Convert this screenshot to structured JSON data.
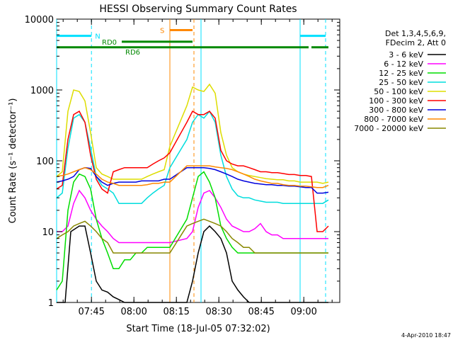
{
  "chart_data": {
    "type": "line",
    "title": "HESSI Observing Summary Count Rates",
    "xlabel": "Start Time (18-Jul-05 07:32:02)",
    "ylabel": "Count Rate (s⁻¹ detector⁻¹)",
    "yscale": "log",
    "ylim": [
      1,
      10000
    ],
    "xlim_minutes": [
      0,
      100
    ],
    "x_ticks": [
      "07:45",
      "08:00",
      "08:15",
      "08:30",
      "08:45",
      "09:00"
    ],
    "y_ticks": [
      "1",
      "10",
      "100",
      "1000",
      "10000"
    ],
    "legend_position": "right",
    "legend_header": [
      "Det 1,3,4,5,6,9,",
      "FDecim 2, Att 0"
    ],
    "series": [
      {
        "name": "3 - 6 keV",
        "color": "#000000",
        "x": [
          0,
          3,
          5,
          8,
          10,
          12,
          14,
          16,
          18,
          20,
          22,
          24,
          26,
          28,
          30,
          32,
          34,
          36,
          38,
          40,
          46,
          48,
          50,
          52,
          54,
          56,
          58,
          60,
          62,
          64,
          66,
          68,
          70,
          72,
          74,
          76,
          78,
          80,
          82,
          84,
          86,
          88,
          90,
          92,
          94,
          96
        ],
        "y": [
          1,
          1,
          10,
          12,
          12,
          5,
          2,
          1.5,
          1.4,
          1.2,
          1.1,
          1,
          1,
          1,
          1,
          1,
          1,
          1,
          1,
          1,
          1,
          2,
          5,
          10,
          12,
          10,
          8,
          5,
          2,
          1.5,
          1.2,
          1,
          1,
          1,
          1,
          1,
          1,
          1,
          1,
          1,
          1,
          1,
          1,
          1,
          1,
          1
        ]
      },
      {
        "name": "6 - 12 keV",
        "color": "#ff00ff",
        "x": [
          0,
          2,
          4,
          6,
          8,
          10,
          12,
          14,
          16,
          18,
          20,
          22,
          24,
          26,
          28,
          30,
          32,
          34,
          36,
          38,
          40,
          46,
          48,
          50,
          52,
          54,
          56,
          58,
          60,
          62,
          64,
          66,
          68,
          70,
          72,
          74,
          76,
          78,
          80,
          82,
          84,
          86,
          88,
          90,
          92,
          94,
          96
        ],
        "y": [
          10,
          10,
          12,
          25,
          38,
          30,
          20,
          15,
          12,
          10,
          8,
          7,
          7,
          7,
          7,
          7,
          7,
          7,
          7,
          7,
          7,
          8,
          10,
          22,
          35,
          38,
          30,
          22,
          15,
          12,
          11,
          10,
          10,
          11,
          13,
          10,
          9,
          9,
          8,
          8,
          8,
          8,
          8,
          8,
          8,
          8,
          8
        ]
      },
      {
        "name": "12 - 25 keV",
        "color": "#00dd00",
        "x": [
          0,
          2,
          4,
          6,
          8,
          10,
          12,
          14,
          16,
          18,
          20,
          22,
          24,
          26,
          28,
          30,
          32,
          34,
          36,
          38,
          40,
          46,
          48,
          50,
          52,
          54,
          56,
          58,
          60,
          62,
          64,
          66,
          68,
          70,
          72,
          74,
          76,
          78,
          80,
          82,
          84,
          86,
          88,
          90,
          92,
          94,
          96
        ],
        "y": [
          1.5,
          2,
          20,
          50,
          65,
          60,
          40,
          15,
          8,
          5,
          3,
          3,
          4,
          4,
          5,
          5,
          6,
          6,
          6,
          6,
          6,
          15,
          30,
          60,
          70,
          50,
          30,
          12,
          8,
          6,
          5,
          5,
          5,
          5,
          5,
          5,
          5,
          5,
          5,
          5,
          5,
          5,
          5,
          5,
          5,
          5,
          5
        ]
      },
      {
        "name": "25 - 50 keV",
        "color": "#00dddd",
        "x": [
          0,
          2,
          4,
          6,
          8,
          10,
          12,
          14,
          16,
          18,
          20,
          22,
          24,
          26,
          28,
          30,
          32,
          34,
          36,
          38,
          40,
          46,
          48,
          50,
          52,
          54,
          56,
          58,
          60,
          62,
          64,
          66,
          68,
          70,
          72,
          74,
          76,
          78,
          80,
          82,
          84,
          86,
          88,
          90,
          92,
          94,
          96
        ],
        "y": [
          30,
          35,
          150,
          400,
          450,
          350,
          150,
          60,
          45,
          40,
          35,
          25,
          25,
          25,
          25,
          25,
          30,
          35,
          40,
          45,
          80,
          200,
          350,
          450,
          400,
          500,
          350,
          120,
          60,
          40,
          32,
          30,
          30,
          28,
          27,
          26,
          26,
          26,
          25,
          25,
          25,
          25,
          25,
          25,
          25,
          25,
          28
        ]
      },
      {
        "name": "50 - 100 keV",
        "color": "#dddd00",
        "x": [
          0,
          2,
          4,
          6,
          8,
          10,
          12,
          14,
          16,
          18,
          20,
          22,
          24,
          26,
          28,
          30,
          32,
          34,
          36,
          38,
          40,
          46,
          48,
          50,
          52,
          54,
          56,
          58,
          60,
          62,
          64,
          66,
          68,
          70,
          72,
          74,
          76,
          78,
          80,
          82,
          84,
          86,
          88,
          90,
          92,
          94,
          96
        ],
        "y": [
          60,
          70,
          500,
          1000,
          950,
          700,
          250,
          80,
          65,
          60,
          55,
          55,
          55,
          55,
          55,
          55,
          60,
          65,
          70,
          75,
          160,
          600,
          1100,
          1000,
          950,
          1200,
          900,
          250,
          120,
          80,
          70,
          65,
          62,
          60,
          58,
          56,
          55,
          54,
          54,
          52,
          52,
          50,
          50,
          50,
          50,
          48,
          50
        ]
      },
      {
        "name": "100 - 300 keV",
        "color": "#ff0000",
        "x": [
          0,
          2,
          4,
          6,
          8,
          10,
          12,
          14,
          16,
          18,
          20,
          22,
          24,
          26,
          28,
          30,
          32,
          34,
          36,
          38,
          40,
          46,
          48,
          50,
          52,
          54,
          56,
          58,
          60,
          62,
          64,
          66,
          68,
          70,
          72,
          74,
          76,
          78,
          80,
          82,
          84,
          86,
          88,
          90,
          92,
          94,
          96
        ],
        "y": [
          40,
          45,
          200,
          450,
          500,
          350,
          120,
          55,
          40,
          35,
          70,
          75,
          80,
          80,
          80,
          80,
          80,
          90,
          100,
          110,
          130,
          350,
          500,
          450,
          450,
          500,
          400,
          140,
          100,
          90,
          85,
          85,
          80,
          75,
          70,
          70,
          68,
          68,
          66,
          64,
          64,
          62,
          62,
          60,
          10,
          10,
          12
        ]
      },
      {
        "name": "300 - 800 keV",
        "color": "#0000dd",
        "x": [
          0,
          2,
          4,
          6,
          8,
          10,
          12,
          14,
          16,
          18,
          20,
          22,
          24,
          26,
          28,
          30,
          32,
          34,
          36,
          38,
          40,
          46,
          48,
          50,
          52,
          54,
          56,
          58,
          60,
          62,
          64,
          66,
          68,
          70,
          72,
          74,
          76,
          78,
          80,
          82,
          84,
          86,
          88,
          90,
          92,
          94,
          96
        ],
        "y": [
          50,
          52,
          55,
          60,
          75,
          80,
          78,
          60,
          50,
          45,
          48,
          50,
          50,
          50,
          50,
          52,
          52,
          52,
          52,
          55,
          55,
          80,
          80,
          80,
          80,
          78,
          75,
          70,
          65,
          60,
          55,
          52,
          50,
          48,
          47,
          46,
          46,
          45,
          45,
          44,
          44,
          43,
          42,
          42,
          35,
          35,
          36
        ]
      },
      {
        "name": "800 - 7000 keV",
        "color": "#ff8800",
        "x": [
          0,
          2,
          4,
          6,
          8,
          10,
          12,
          14,
          16,
          18,
          20,
          22,
          24,
          26,
          28,
          30,
          32,
          34,
          36,
          38,
          40,
          46,
          48,
          50,
          52,
          54,
          56,
          58,
          60,
          62,
          64,
          66,
          68,
          70,
          72,
          74,
          76,
          78,
          80,
          82,
          84,
          86,
          88,
          90,
          92,
          94,
          96
        ],
        "y": [
          60,
          62,
          65,
          70,
          75,
          80,
          75,
          65,
          55,
          50,
          48,
          45,
          45,
          45,
          45,
          45,
          46,
          48,
          48,
          50,
          50,
          85,
          85,
          85,
          85,
          85,
          82,
          80,
          78,
          75,
          70,
          65,
          60,
          55,
          52,
          50,
          48,
          48,
          46,
          45,
          45,
          44,
          44,
          43,
          42,
          42,
          45
        ]
      },
      {
        "name": "7000 - 20000 keV",
        "color": "#888800",
        "x": [
          0,
          2,
          4,
          6,
          8,
          10,
          12,
          14,
          16,
          18,
          20,
          22,
          24,
          26,
          28,
          30,
          32,
          34,
          36,
          38,
          40,
          46,
          48,
          50,
          52,
          54,
          56,
          58,
          60,
          62,
          64,
          66,
          68,
          70,
          72,
          74,
          76,
          78,
          80,
          82,
          84,
          86,
          88,
          90,
          92,
          94,
          96
        ],
        "y": [
          8,
          9,
          10,
          12,
          13,
          14,
          12,
          10,
          8,
          7,
          5,
          5,
          5,
          5,
          5,
          5,
          5,
          5,
          5,
          5,
          5,
          12,
          13,
          14,
          15,
          14,
          13,
          12,
          10,
          8,
          7,
          6,
          6,
          5,
          5,
          5,
          5,
          5,
          5,
          5,
          5,
          5,
          5,
          5,
          5,
          5,
          5
        ]
      }
    ],
    "flags": [
      {
        "label": "N",
        "color": "#00e0ff",
        "level": 5800,
        "segments": [
          [
            0,
            12.3
          ],
          [
            86,
            95
          ]
        ]
      },
      {
        "label": "RD0",
        "color": "#008800",
        "level": 4800,
        "segments": [
          [
            23,
            48
          ]
        ]
      },
      {
        "label": "RD6",
        "color": "#008800",
        "level": 4000,
        "segments": [
          [
            0,
            48
          ],
          [
            48,
            68
          ],
          [
            68,
            89
          ],
          [
            90,
            96
          ]
        ]
      },
      {
        "label": "S",
        "color": "#ff8800",
        "level": 7000,
        "segments": [
          [
            40,
            48
          ]
        ]
      }
    ],
    "vertical_markers": [
      {
        "x": 0,
        "color": "#00e0ff",
        "style": "solid"
      },
      {
        "x": 12.3,
        "color": "#00e0ff",
        "style": "dashed"
      },
      {
        "x": 40,
        "color": "#ff8800",
        "style": "solid"
      },
      {
        "x": 48.5,
        "color": "#ff8800",
        "style": "dashed"
      },
      {
        "x": 51,
        "color": "#00e0ff",
        "style": "solid"
      },
      {
        "x": 86,
        "color": "#00e0ff",
        "style": "solid"
      },
      {
        "x": 95,
        "color": "#00e0ff",
        "style": "dashed"
      }
    ],
    "timestamp": "4-Apr-2010 18:47"
  }
}
